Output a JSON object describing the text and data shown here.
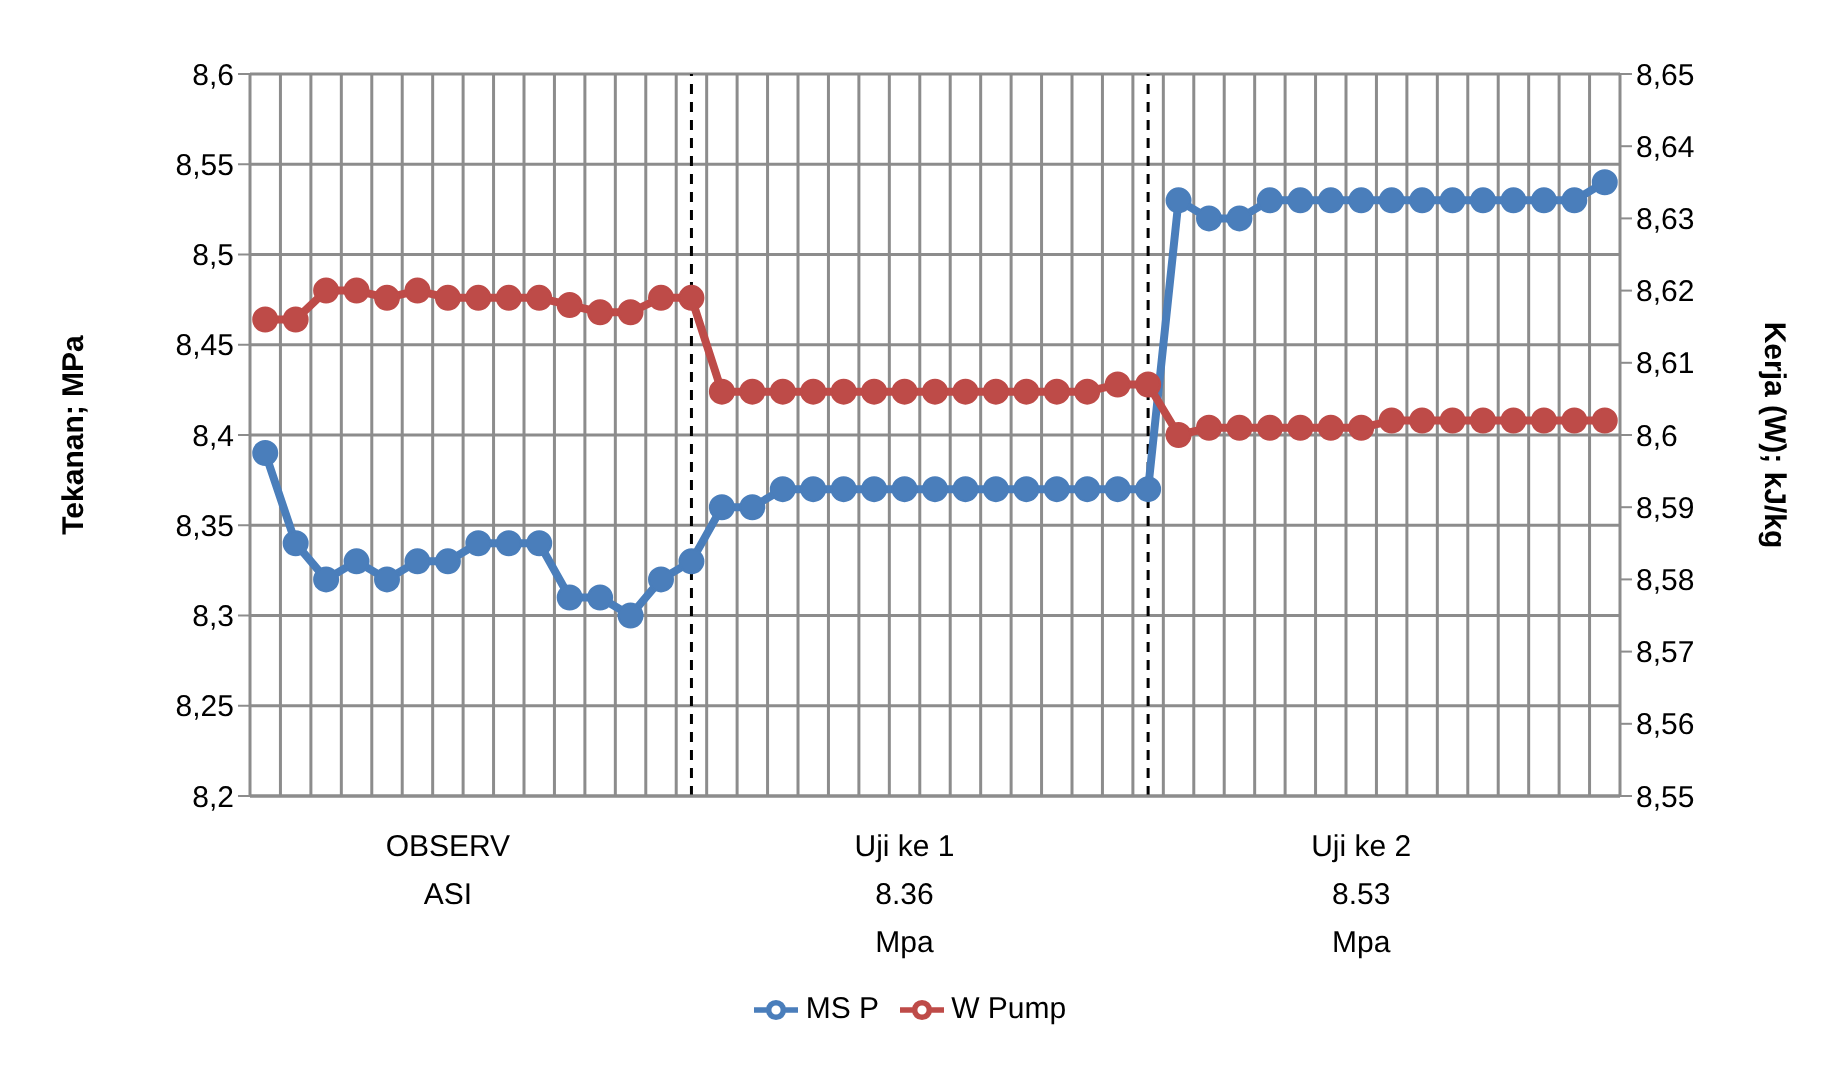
{
  "chart_data": {
    "type": "line",
    "ylabel": "Tekanan; MPa",
    "y2label": "Kerja (W); kJ/kg",
    "categories": [
      null,
      null,
      null,
      null,
      null,
      null,
      "OBSERV\nASI",
      null,
      null,
      null,
      null,
      null,
      null,
      null,
      null,
      null,
      null,
      null,
      null,
      null,
      null,
      "Uji ke 1\n8.36\nMpa",
      null,
      null,
      null,
      null,
      null,
      null,
      null,
      null,
      null,
      null,
      null,
      null,
      null,
      null,
      "Uji ke 2\n8.53\nMpa",
      null,
      null,
      null,
      null,
      null,
      null,
      null,
      null
    ],
    "series": [
      {
        "name": "MS P",
        "color": "#4a7ebb",
        "values": [
          8.39,
          8.34,
          8.32,
          8.33,
          8.32,
          8.33,
          8.33,
          8.34,
          8.34,
          8.34,
          8.31,
          8.31,
          8.3,
          8.32,
          8.33,
          8.36,
          8.36,
          8.37,
          8.37,
          8.37,
          8.37,
          8.37,
          8.37,
          8.37,
          8.37,
          8.37,
          8.37,
          8.37,
          8.37,
          8.37,
          8.53,
          8.52,
          8.52,
          8.53,
          8.53,
          8.53,
          8.53,
          8.53,
          8.53,
          8.53,
          8.53,
          8.53,
          8.53,
          8.53,
          8.54
        ]
      },
      {
        "name": "W Pump",
        "color": "#be4b48",
        "axis": "y2",
        "values": [
          8.616,
          8.616,
          8.62,
          8.62,
          8.619,
          8.62,
          8.619,
          8.619,
          8.619,
          8.619,
          8.618,
          8.617,
          8.617,
          8.619,
          8.619,
          8.606,
          8.606,
          8.606,
          8.606,
          8.606,
          8.606,
          8.606,
          8.606,
          8.606,
          8.606,
          8.606,
          8.606,
          8.606,
          8.607,
          8.607,
          8.6,
          8.601,
          8.601,
          8.601,
          8.601,
          8.601,
          8.601,
          8.602,
          8.602,
          8.602,
          8.602,
          8.602,
          8.602,
          8.602,
          8.602
        ]
      }
    ],
    "ylim": [
      8.2,
      8.6
    ],
    "yticks": [
      {
        "value": 8.2,
        "label": "8,2"
      },
      {
        "value": 8.25,
        "label": "8,25"
      },
      {
        "value": 8.3,
        "label": "8,3"
      },
      {
        "value": 8.35,
        "label": "8,35"
      },
      {
        "value": 8.4,
        "label": "8,4"
      },
      {
        "value": 8.45,
        "label": "8,45"
      },
      {
        "value": 8.5,
        "label": "8,5"
      },
      {
        "value": 8.55,
        "label": "8,55"
      },
      {
        "value": 8.6,
        "label": "8,6"
      }
    ],
    "y2lim": [
      8.55,
      8.65
    ],
    "y2ticks": [
      {
        "value": 8.55,
        "label": "8,55"
      },
      {
        "value": 8.56,
        "label": "8,56"
      },
      {
        "value": 8.57,
        "label": "8,57"
      },
      {
        "value": 8.58,
        "label": "8,58"
      },
      {
        "value": 8.59,
        "label": "8,59"
      },
      {
        "value": 8.6,
        "label": "8,6"
      },
      {
        "value": 8.61,
        "label": "8,61"
      },
      {
        "value": 8.62,
        "label": "8,62"
      },
      {
        "value": 8.63,
        "label": "8,63"
      },
      {
        "value": 8.64,
        "label": "8,64"
      },
      {
        "value": 8.65,
        "label": "8,65"
      }
    ],
    "grid": true,
    "legend": "bottom",
    "marker": "circle",
    "line_style": "solid"
  }
}
